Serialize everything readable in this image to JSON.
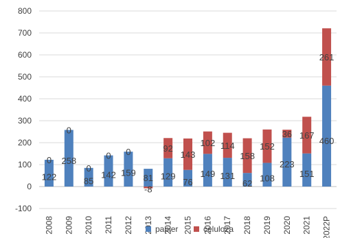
{
  "chart_data": {
    "type": "bar",
    "stacked": true,
    "categories": [
      "2008",
      "2009",
      "2010",
      "2011",
      "2012",
      "2013",
      "2014",
      "2015",
      "2016",
      "2017",
      "2018",
      "2019",
      "2020",
      "2021",
      "2022P"
    ],
    "series": [
      {
        "name": "papier",
        "color": "#4f81bd",
        "values": [
          122,
          258,
          85,
          142,
          159,
          81,
          129,
          76,
          149,
          131,
          62,
          108,
          223,
          151,
          460
        ],
        "labels": [
          "122",
          "258",
          "85",
          "142",
          "159",
          "81",
          "129",
          "76",
          "149",
          "131",
          "62",
          "108",
          "223",
          "151",
          "460"
        ]
      },
      {
        "name": "celuloza",
        "color": "#c0504d",
        "values": [
          0,
          0,
          0,
          0,
          0,
          -8,
          92,
          143,
          102,
          114,
          158,
          152,
          36,
          167,
          261
        ],
        "labels": [
          "0",
          "0",
          "0",
          "0",
          "0",
          "-8",
          "92",
          "143",
          "102",
          "114",
          "158",
          "152",
          "36",
          "167",
          "261"
        ]
      }
    ],
    "ylim": [
      -100,
      800
    ],
    "yticks": [
      "-100",
      "0",
      "100",
      "200",
      "300",
      "400",
      "500",
      "600",
      "700",
      "800"
    ],
    "grid": true,
    "legend_position": "bottom",
    "title": "",
    "xlabel": "",
    "ylabel": ""
  }
}
